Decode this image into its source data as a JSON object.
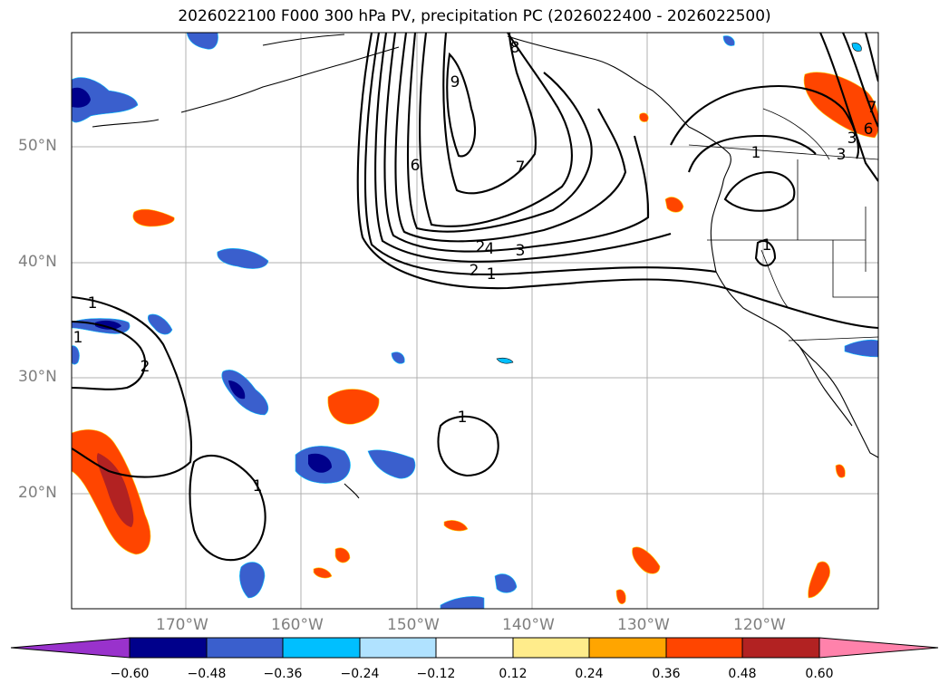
{
  "title": "2026022100 F000 300 hPa PV, precipitation PC (2026022400 - 2026022500)",
  "lat_labels": [
    "50°N",
    "40°N",
    "30°N",
    "20°N"
  ],
  "lon_labels": [
    "170°W",
    "160°W",
    "150°W",
    "140°W",
    "130°W",
    "120°W"
  ],
  "colorbar": {
    "ticks": [
      "−0.60",
      "−0.48",
      "−0.36",
      "−0.24",
      "−0.12",
      "0.12",
      "0.24",
      "0.36",
      "0.48",
      "0.60"
    ],
    "colors": [
      "#9932CC",
      "#00008B",
      "#3A5FCD",
      "#00BFFF",
      "#B0E2FF",
      "#FFFFFF",
      "#FFEC8B",
      "#FFA500",
      "#FF4500",
      "#B22222",
      "#FF82AB"
    ]
  },
  "contour_labels": [
    "1",
    "1",
    "2",
    "2",
    "1",
    "1",
    "1",
    "3",
    "2",
    "4",
    "1",
    "2",
    "3",
    "6",
    "7",
    "8",
    "9",
    "1",
    "1",
    "3",
    "6",
    "7"
  ]
}
